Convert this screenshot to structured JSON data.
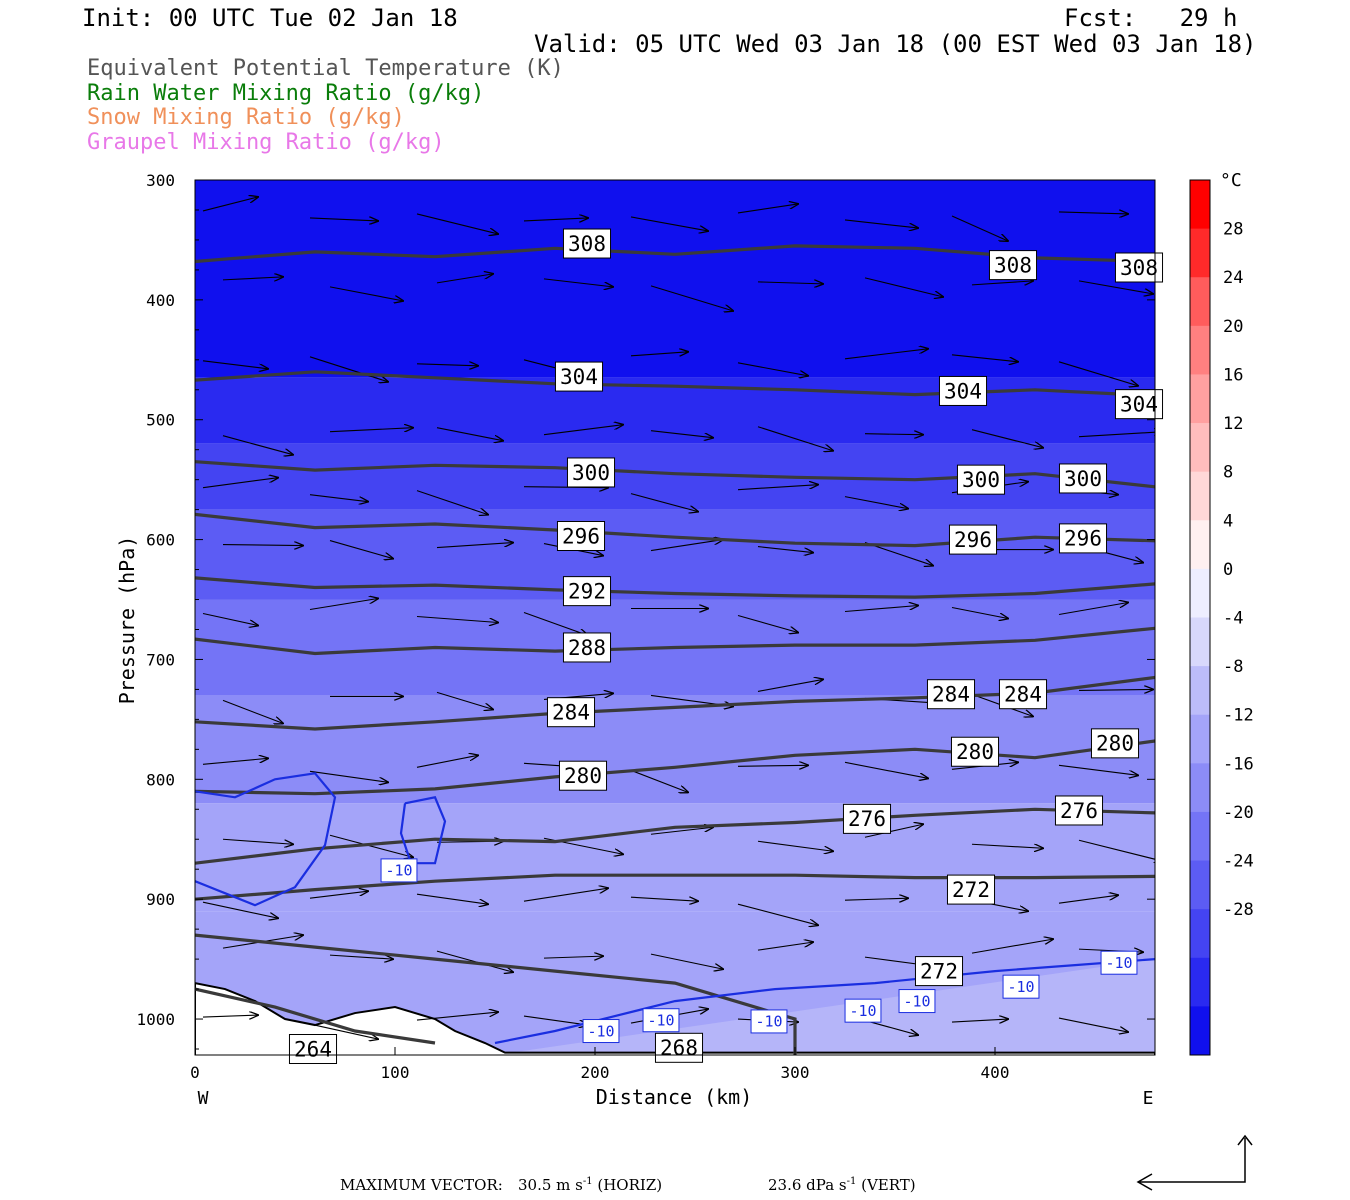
{
  "header": {
    "init": "Init: 00 UTC Tue 02 Jan 18",
    "fcst": "Fcst:   29 h",
    "valid": "Valid: 05 UTC Wed 03 Jan 18 (00 EST Wed 03 Jan 18)"
  },
  "legend": [
    {
      "label": "Equivalent Potential Temperature (K)",
      "color": "#555555"
    },
    {
      "label": "Rain Water Mixing Ratio (g/kg)",
      "color": "#0a7d0a"
    },
    {
      "label": "Snow Mixing Ratio (g/kg)",
      "color": "#f0905a"
    },
    {
      "label": "Graupel Mixing Ratio (g/kg)",
      "color": "#e878e8"
    }
  ],
  "footer": {
    "max_vector_label": "MAXIMUM VECTOR:",
    "horiz_value": "30.5 m s",
    "horiz_exp": "-1",
    "horiz_unit": " (HORIZ)",
    "vert_value": "23.6 dPa s",
    "vert_exp": "-1",
    "vert_unit": " (VERT)"
  },
  "chart_data": {
    "type": "contour",
    "xlabel": "Distance (km)",
    "ylabel": "Pressure (hPa)",
    "xlim": [
      0,
      480
    ],
    "ylim": [
      1030,
      300
    ],
    "y_scale": "linear (pressure, inverted)",
    "x_ticks": [
      0,
      100,
      200,
      300,
      400
    ],
    "y_ticks": [
      300,
      400,
      500,
      600,
      700,
      800,
      900,
      1000
    ],
    "x_end_labels": {
      "left": "W",
      "right": "E"
    },
    "colorbar": {
      "unit": "°C",
      "tick_labels": [
        "28",
        "24",
        "20",
        "16",
        "12",
        "8",
        "4",
        "0",
        "-4",
        "-8",
        "-12",
        "-16",
        "-20",
        "-24",
        "-28"
      ],
      "levels": [
        -32,
        -28,
        -24,
        -20,
        -16,
        -12,
        -8,
        -4,
        0,
        4,
        8,
        12,
        16,
        20,
        24,
        28,
        32
      ],
      "colors": [
        "#1010ee",
        "#2a2af0",
        "#4444f2",
        "#5c5cf4",
        "#7474f6",
        "#8c8cf7",
        "#a4a4f9",
        "#bcbcfa",
        "#d8d8fc",
        "#eeeeff",
        "#fff0f0",
        "#ffd8d8",
        "#ffbdbd",
        "#ffa0a0",
        "#ff8080",
        "#ff5c5c",
        "#ff2a2a",
        "#ff0000"
      ]
    },
    "temperature_bands": [
      {
        "p_top": 300,
        "p_bot": 465,
        "temp_c": -30
      },
      {
        "p_top": 465,
        "p_bot": 520,
        "temp_c": -26
      },
      {
        "p_top": 520,
        "p_bot": 575,
        "temp_c": -22
      },
      {
        "p_top": 575,
        "p_bot": 650,
        "temp_c": -18
      },
      {
        "p_top": 650,
        "p_bot": 730,
        "temp_c": -14
      },
      {
        "p_top": 730,
        "p_bot": 820,
        "temp_c": -10
      },
      {
        "p_top": 820,
        "p_bot": 910,
        "temp_c": -8
      },
      {
        "p_top": 910,
        "p_bot": 1030,
        "temp_c": -6
      }
    ],
    "theta_e_contours": [
      {
        "level": 308,
        "points": [
          [
            0,
            368
          ],
          [
            60,
            360
          ],
          [
            120,
            364
          ],
          [
            180,
            357
          ],
          [
            240,
            362
          ],
          [
            300,
            355
          ],
          [
            360,
            357
          ],
          [
            420,
            365
          ],
          [
            480,
            368
          ]
        ],
        "labels": [
          [
            196,
            353
          ],
          [
            409,
            371
          ],
          [
            472,
            373
          ]
        ]
      },
      {
        "level": 304,
        "points": [
          [
            0,
            467
          ],
          [
            60,
            460
          ],
          [
            120,
            465
          ],
          [
            180,
            470
          ],
          [
            240,
            472
          ],
          [
            300,
            475
          ],
          [
            360,
            479
          ],
          [
            420,
            475
          ],
          [
            480,
            480
          ]
        ],
        "labels": [
          [
            192,
            464
          ],
          [
            384,
            476
          ],
          [
            472,
            487
          ]
        ]
      },
      {
        "level": 300,
        "points": [
          [
            0,
            535
          ],
          [
            60,
            542
          ],
          [
            120,
            538
          ],
          [
            180,
            540
          ],
          [
            240,
            545
          ],
          [
            300,
            548
          ],
          [
            360,
            550
          ],
          [
            420,
            545
          ],
          [
            480,
            556
          ]
        ],
        "labels": [
          [
            198,
            544
          ],
          [
            393,
            550
          ],
          [
            444,
            549
          ]
        ]
      },
      {
        "level": 296,
        "points": [
          [
            0,
            579
          ],
          [
            60,
            590
          ],
          [
            120,
            587
          ],
          [
            180,
            592
          ],
          [
            240,
            598
          ],
          [
            300,
            603
          ],
          [
            360,
            605
          ],
          [
            420,
            598
          ],
          [
            480,
            601
          ]
        ],
        "labels": [
          [
            193,
            597
          ],
          [
            389,
            600
          ],
          [
            444,
            599
          ]
        ]
      },
      {
        "level": 292,
        "points": [
          [
            0,
            632
          ],
          [
            60,
            640
          ],
          [
            120,
            638
          ],
          [
            180,
            642
          ],
          [
            240,
            645
          ],
          [
            300,
            647
          ],
          [
            360,
            648
          ],
          [
            420,
            645
          ],
          [
            480,
            637
          ]
        ],
        "labels": [
          [
            196,
            643
          ]
        ]
      },
      {
        "level": 288,
        "points": [
          [
            0,
            683
          ],
          [
            60,
            695
          ],
          [
            120,
            690
          ],
          [
            180,
            693
          ],
          [
            240,
            690
          ],
          [
            300,
            688
          ],
          [
            360,
            688
          ],
          [
            420,
            684
          ],
          [
            480,
            674
          ]
        ],
        "labels": [
          [
            196,
            690
          ]
        ]
      },
      {
        "level": 284,
        "points": [
          [
            0,
            752
          ],
          [
            60,
            758
          ],
          [
            120,
            752
          ],
          [
            180,
            745
          ],
          [
            240,
            740
          ],
          [
            300,
            735
          ],
          [
            360,
            732
          ],
          [
            420,
            728
          ],
          [
            480,
            715
          ]
        ],
        "labels": [
          [
            188,
            744
          ],
          [
            378,
            729
          ],
          [
            414,
            729
          ]
        ]
      },
      {
        "level": 280,
        "points": [
          [
            0,
            810
          ],
          [
            60,
            812
          ],
          [
            120,
            808
          ],
          [
            180,
            798
          ],
          [
            240,
            790
          ],
          [
            300,
            780
          ],
          [
            360,
            775
          ],
          [
            420,
            782
          ],
          [
            480,
            768
          ]
        ],
        "labels": [
          [
            194,
            797
          ],
          [
            390,
            777
          ],
          [
            460,
            770
          ]
        ]
      },
      {
        "level": 276,
        "points": [
          [
            0,
            870
          ],
          [
            60,
            858
          ],
          [
            120,
            850
          ],
          [
            180,
            852
          ],
          [
            240,
            840
          ],
          [
            300,
            836
          ],
          [
            360,
            830
          ],
          [
            420,
            825
          ],
          [
            480,
            828
          ]
        ],
        "labels": [
          [
            336,
            833
          ],
          [
            442,
            826
          ]
        ]
      },
      {
        "level": 272,
        "points": [
          [
            0,
            900
          ],
          [
            60,
            892
          ],
          [
            120,
            885
          ],
          [
            180,
            880
          ],
          [
            240,
            880
          ],
          [
            300,
            880
          ],
          [
            360,
            882
          ],
          [
            420,
            882
          ],
          [
            480,
            881
          ]
        ],
        "labels": [
          [
            388,
            892
          ],
          [
            372,
            960
          ]
        ]
      },
      {
        "level": 268,
        "points": [
          [
            0,
            930
          ],
          [
            60,
            940
          ],
          [
            120,
            950
          ],
          [
            180,
            960
          ],
          [
            240,
            970
          ],
          [
            300,
            1000
          ],
          [
            300,
            1030
          ]
        ],
        "labels": [
          [
            242,
            1024
          ]
        ]
      },
      {
        "level": 264,
        "points": [
          [
            0,
            975
          ],
          [
            40,
            990
          ],
          [
            80,
            1010
          ],
          [
            120,
            1020
          ]
        ],
        "labels": [
          [
            59,
            1025
          ]
        ]
      }
    ],
    "temp_minus10_contour": {
      "level": -10,
      "main_line": [
        [
          150,
          1020
        ],
        [
          180,
          1010
        ],
        [
          240,
          985
        ],
        [
          290,
          975
        ],
        [
          340,
          970
        ],
        [
          400,
          960
        ],
        [
          440,
          955
        ],
        [
          480,
          950
        ]
      ],
      "labels": [
        [
          102,
          876
        ],
        [
          203,
          1010
        ],
        [
          233,
          1001
        ],
        [
          287,
          1002
        ],
        [
          334,
          993
        ],
        [
          361,
          985
        ],
        [
          413,
          973
        ],
        [
          462,
          953
        ]
      ]
    },
    "wind_vectors": "horizontal wind + vertical motion arrows across the section; max vector 30.5 m s-1 (horiz), 23.6 dPa s-1 (vert)"
  }
}
